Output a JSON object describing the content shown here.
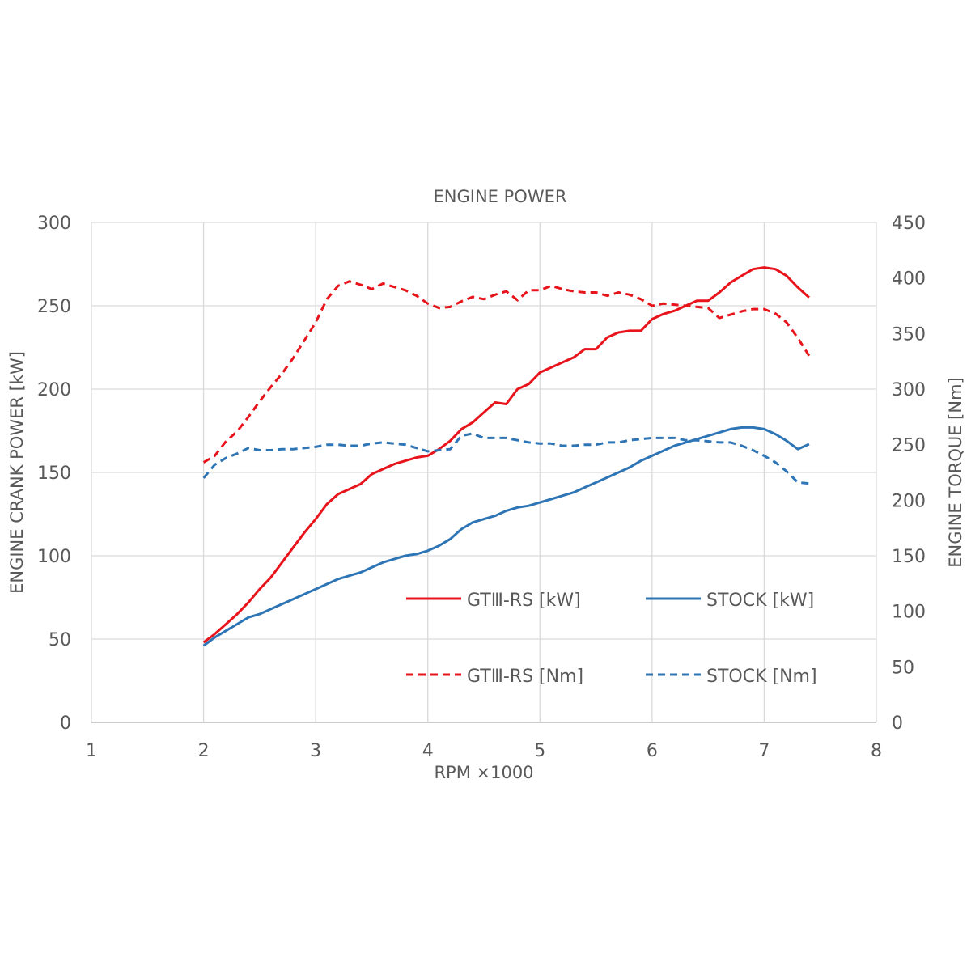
{
  "chart_data": {
    "type": "line",
    "title": "ENGINE POWER",
    "xlabel": "RPM ×1000",
    "ylabel": "ENGINE CRANK POWER [kW]",
    "y2label": "ENGINE TORQUE [Nm]",
    "xlim": [
      1,
      8
    ],
    "ylim": [
      0,
      300
    ],
    "y2lim": [
      0,
      450
    ],
    "x_ticks": [
      "1",
      "2",
      "3",
      "4",
      "5",
      "6",
      "7",
      "8"
    ],
    "y_ticks": [
      "0",
      "50",
      "100",
      "150",
      "200",
      "250",
      "300"
    ],
    "y2_ticks": [
      "0",
      "50",
      "100",
      "150",
      "200",
      "250",
      "300",
      "350",
      "400",
      "450"
    ],
    "grid": true,
    "legend_position": "inside-lower-right",
    "series": [
      {
        "name": "GTⅢ-RS [kW]",
        "axis": "left",
        "color": "#e8141c",
        "dash": "solid",
        "x": [
          2.0,
          2.1,
          2.2,
          2.3,
          2.4,
          2.5,
          2.6,
          2.7,
          2.8,
          2.9,
          3.0,
          3.1,
          3.2,
          3.3,
          3.4,
          3.5,
          3.6,
          3.7,
          3.8,
          3.9,
          4.0,
          4.1,
          4.2,
          4.3,
          4.4,
          4.5,
          4.6,
          4.7,
          4.8,
          4.9,
          5.0,
          5.1,
          5.2,
          5.3,
          5.4,
          5.5,
          5.6,
          5.7,
          5.8,
          5.9,
          6.0,
          6.1,
          6.2,
          6.3,
          6.4,
          6.5,
          6.6,
          6.7,
          6.8,
          6.9,
          7.0,
          7.1,
          7.2,
          7.3,
          7.4
        ],
        "values": [
          48,
          53,
          59,
          65,
          72,
          80,
          87,
          96,
          105,
          114,
          122,
          131,
          137,
          140,
          143,
          149,
          152,
          155,
          157,
          159,
          160,
          164,
          169,
          176,
          180,
          186,
          192,
          191,
          200,
          203,
          210,
          213,
          216,
          219,
          224,
          224,
          231,
          234,
          235,
          235,
          242,
          245,
          247,
          250,
          253,
          253,
          258,
          264,
          268,
          272,
          273,
          272,
          268,
          261,
          255
        ]
      },
      {
        "name": "STOCK [kW]",
        "axis": "left",
        "color": "#2e75b6",
        "dash": "solid",
        "x": [
          2.0,
          2.1,
          2.2,
          2.3,
          2.4,
          2.5,
          2.6,
          2.7,
          2.8,
          2.9,
          3.0,
          3.1,
          3.2,
          3.3,
          3.4,
          3.5,
          3.6,
          3.7,
          3.8,
          3.9,
          4.0,
          4.1,
          4.2,
          4.3,
          4.4,
          4.5,
          4.6,
          4.7,
          4.8,
          4.9,
          5.0,
          5.1,
          5.2,
          5.3,
          5.4,
          5.5,
          5.6,
          5.7,
          5.8,
          5.9,
          6.0,
          6.1,
          6.2,
          6.3,
          6.4,
          6.5,
          6.6,
          6.7,
          6.8,
          6.9,
          7.0,
          7.1,
          7.2,
          7.3,
          7.4
        ],
        "values": [
          46,
          51,
          55,
          59,
          63,
          65,
          68,
          71,
          74,
          77,
          80,
          83,
          86,
          88,
          90,
          93,
          96,
          98,
          100,
          101,
          103,
          106,
          110,
          116,
          120,
          122,
          124,
          127,
          129,
          130,
          132,
          134,
          136,
          138,
          141,
          144,
          147,
          150,
          153,
          157,
          160,
          163,
          166,
          168,
          170,
          172,
          174,
          176,
          177,
          177,
          176,
          173,
          169,
          164,
          167
        ]
      },
      {
        "name": "GTⅢ-RS [Nm]",
        "axis": "right",
        "color": "#e8141c",
        "dash": "dashed",
        "x": [
          2.0,
          2.1,
          2.2,
          2.3,
          2.4,
          2.5,
          2.6,
          2.7,
          2.8,
          2.9,
          3.0,
          3.1,
          3.2,
          3.3,
          3.4,
          3.5,
          3.6,
          3.7,
          3.8,
          3.9,
          4.0,
          4.1,
          4.2,
          4.3,
          4.4,
          4.5,
          4.6,
          4.7,
          4.8,
          4.9,
          5.0,
          5.1,
          5.2,
          5.3,
          5.4,
          5.5,
          5.6,
          5.7,
          5.8,
          5.9,
          6.0,
          6.1,
          6.2,
          6.3,
          6.4,
          6.5,
          6.6,
          6.7,
          6.8,
          6.9,
          7.0,
          7.1,
          7.2,
          7.3,
          7.4
        ],
        "values": [
          234,
          240,
          253,
          262,
          275,
          289,
          302,
          314,
          328,
          344,
          360,
          381,
          393,
          397,
          394,
          390,
          395,
          392,
          389,
          384,
          377,
          373,
          374,
          379,
          383,
          381,
          385,
          388,
          380,
          389,
          389,
          393,
          390,
          388,
          387,
          387,
          384,
          387,
          385,
          381,
          375,
          377,
          376,
          375,
          374,
          373,
          364,
          367,
          370,
          372,
          372,
          368,
          360,
          346,
          330
        ]
      },
      {
        "name": "STOCK [Nm]",
        "axis": "right",
        "color": "#2e75b6",
        "dash": "dashed",
        "x": [
          2.0,
          2.1,
          2.2,
          2.3,
          2.4,
          2.5,
          2.6,
          2.7,
          2.8,
          2.9,
          3.0,
          3.1,
          3.2,
          3.3,
          3.4,
          3.5,
          3.6,
          3.7,
          3.8,
          3.9,
          4.0,
          4.1,
          4.2,
          4.3,
          4.4,
          4.5,
          4.6,
          4.7,
          4.8,
          4.9,
          5.0,
          5.1,
          5.2,
          5.3,
          5.4,
          5.5,
          5.6,
          5.7,
          5.8,
          5.9,
          6.0,
          6.1,
          6.2,
          6.3,
          6.4,
          6.5,
          6.6,
          6.7,
          6.8,
          6.9,
          7.0,
          7.1,
          7.2,
          7.3,
          7.4
        ],
        "values": [
          220,
          232,
          238,
          242,
          247,
          245,
          245,
          246,
          246,
          247,
          248,
          250,
          250,
          249,
          249,
          251,
          252,
          251,
          250,
          247,
          244,
          245,
          246,
          258,
          260,
          256,
          256,
          256,
          254,
          252,
          251,
          251,
          249,
          249,
          250,
          250,
          252,
          252,
          254,
          255,
          256,
          256,
          256,
          254,
          254,
          253,
          252,
          252,
          249,
          245,
          240,
          234,
          226,
          216,
          215
        ]
      }
    ]
  }
}
